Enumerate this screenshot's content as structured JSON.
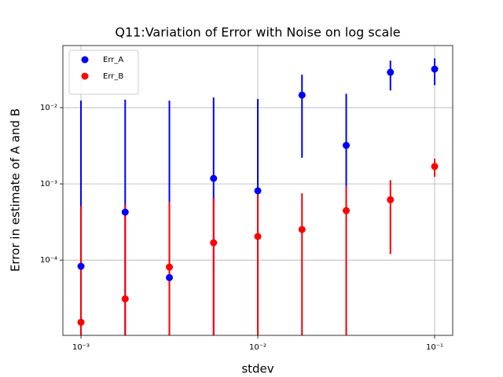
{
  "chart_data": {
    "type": "errorbar",
    "title": "Q11:Variation of Error with Noise on log scale",
    "xlabel": "stdev",
    "ylabel": "Error in estimate of A and B",
    "x": [
      0.001,
      0.001778,
      0.003162,
      0.005623,
      0.01,
      0.01778,
      0.03162,
      0.05623,
      0.1
    ],
    "series": [
      {
        "name": "Err_A",
        "color": "#0000ff",
        "values": [
          8.3e-05,
          0.000426,
          5.9e-05,
          0.00118,
          0.00081,
          0.0146,
          0.0032,
          0.0291,
          0.032
        ],
        "errors": [
          0.0123,
          0.0123,
          0.0123,
          0.0124,
          0.0122,
          0.0124,
          0.012,
          0.0123,
          0.0123
        ]
      },
      {
        "name": "Err_B",
        "color": "#ff0000",
        "values": [
          1.53e-05,
          3.1e-05,
          8.1e-05,
          0.000169,
          0.000204,
          0.000252,
          0.000446,
          0.00062,
          0.00169
        ],
        "errors": [
          0.0005,
          0.0005,
          0.0005,
          0.00048,
          0.00055,
          0.0005,
          0.0005,
          0.0005,
          0.00045
        ]
      }
    ],
    "xlim": [
      0.00079,
      0.1265
    ],
    "ylim": [
      1.03e-05,
      0.0652
    ],
    "xticks": [
      {
        "value": 0.001,
        "label": "10⁻³"
      },
      {
        "value": 0.01,
        "label": "10⁻²"
      },
      {
        "value": 0.1,
        "label": "10⁻¹"
      }
    ],
    "yticks": [
      {
        "value": 0.0001,
        "label": "10⁻⁴"
      },
      {
        "value": 0.001,
        "label": "10⁻³"
      },
      {
        "value": 0.01,
        "label": "10⁻²"
      }
    ],
    "xscale": "log",
    "yscale": "log",
    "grid": true,
    "legend": "upper left"
  }
}
